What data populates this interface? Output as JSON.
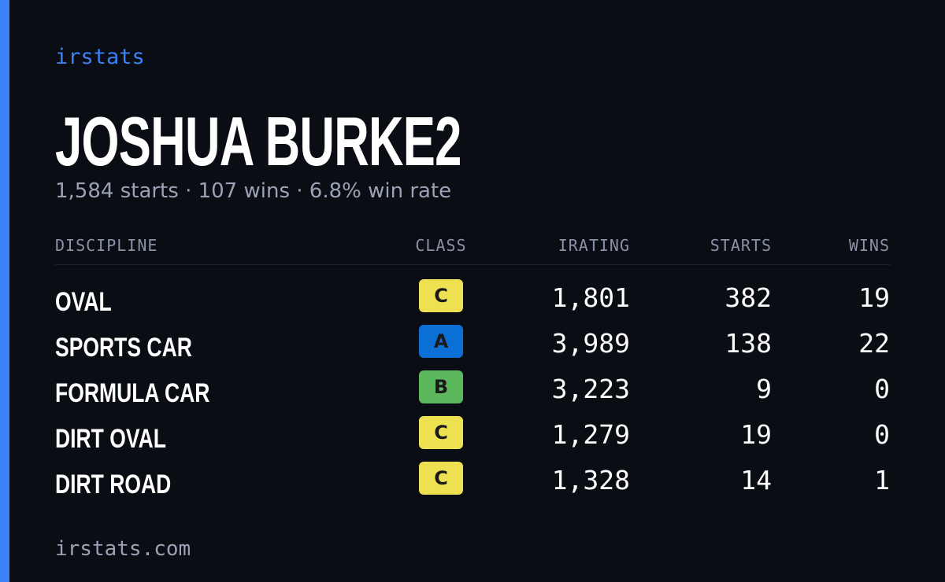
{
  "brand": "irstats",
  "driver": {
    "name": "JOSHUA BURKE2",
    "summary": "1,584 starts · 107 wins · 6.8% win rate"
  },
  "table": {
    "columns": [
      "DISCIPLINE",
      "CLASS",
      "IRATING",
      "STARTS",
      "WINS"
    ],
    "rows": [
      [
        "OVAL",
        "C",
        "1,801",
        "382",
        "19"
      ],
      [
        "SPORTS CAR",
        "A",
        "3,989",
        "138",
        "22"
      ],
      [
        "FORMULA CAR",
        "B",
        "3,223",
        "9",
        "0"
      ],
      [
        "DIRT OVAL",
        "C",
        "1,279",
        "19",
        "0"
      ],
      [
        "DIRT ROAD",
        "C",
        "1,328",
        "14",
        "1"
      ]
    ],
    "class_colors": {
      "A": "#0b6fd6",
      "B": "#5cb85c",
      "C": "#ede151"
    }
  },
  "footer": "irstats.com"
}
